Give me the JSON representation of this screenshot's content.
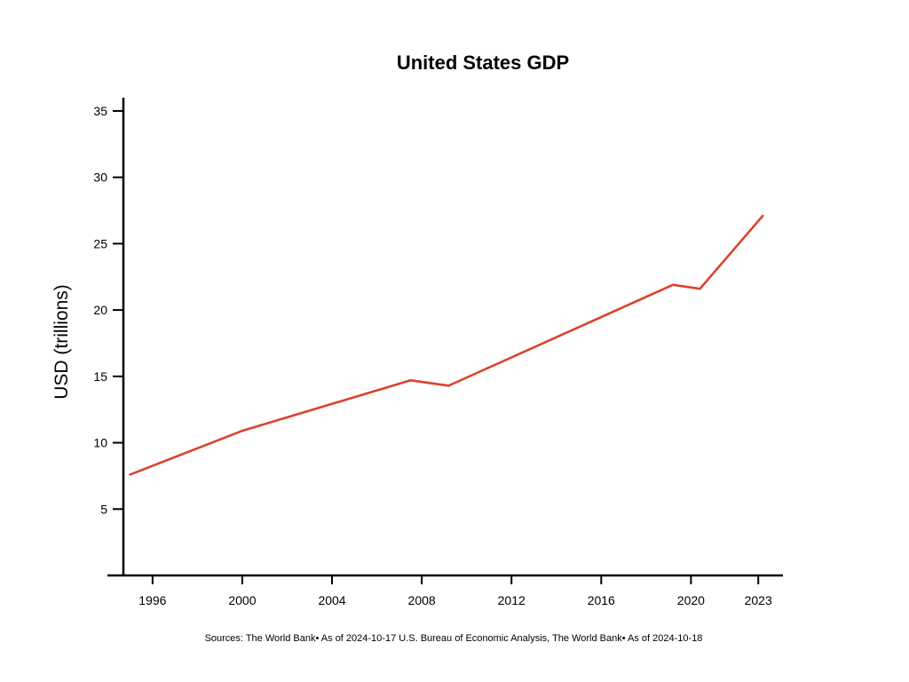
{
  "chart_data": {
    "type": "line",
    "title": "United States GDP",
    "xlabel": "",
    "ylabel": "USD (trillions)",
    "xlim": [
      1994.7,
      2024.1
    ],
    "ylim": [
      0,
      36
    ],
    "x_ticks": [
      {
        "value": 1996,
        "label": "1996"
      },
      {
        "value": 2000,
        "label": "2000"
      },
      {
        "value": 2004,
        "label": "2004"
      },
      {
        "value": 2008,
        "label": "2008"
      },
      {
        "value": 2012,
        "label": "2012"
      },
      {
        "value": 2016,
        "label": "2016"
      },
      {
        "value": 2020,
        "label": "2020"
      },
      {
        "value": 2023,
        "label": "2023"
      }
    ],
    "y_ticks": [
      5,
      10,
      15,
      20,
      25,
      30,
      35
    ],
    "grid": false,
    "legend": "none",
    "line_color": "#d9432f",
    "series": [
      {
        "x": [
          1995,
          2000,
          2007.5,
          2009.2,
          2019.2,
          2020.4,
          2023.2
        ],
        "y": [
          7.6,
          10.9,
          14.7,
          14.3,
          21.9,
          21.6,
          27.1
        ]
      }
    ],
    "footnote": "Sources: The World Bank• As of 2024-10-17 U.S. Bureau of Economic Analysis, The World Bank• As of 2024-10-18"
  }
}
